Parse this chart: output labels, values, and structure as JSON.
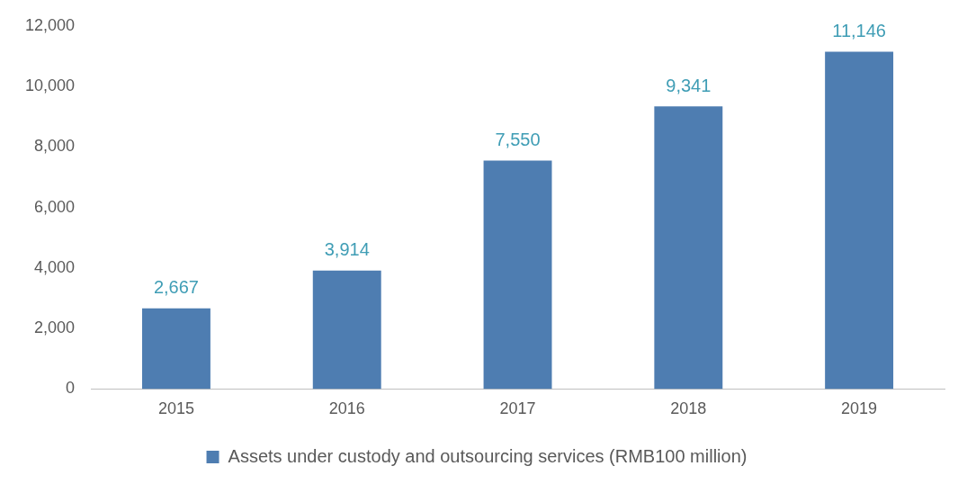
{
  "chart_data": {
    "type": "bar",
    "categories": [
      "2015",
      "2016",
      "2017",
      "2018",
      "2019"
    ],
    "series": [
      {
        "name": "Assets under custody and outsourcing services (RMB100 million)",
        "color": "#4e7db1",
        "values": [
          2667,
          3914,
          7550,
          9341,
          11146
        ]
      }
    ],
    "ylim": [
      0,
      12000
    ],
    "yticks": [
      {
        "value": 0,
        "label": "0"
      },
      {
        "value": 2000,
        "label": "2,000"
      },
      {
        "value": 4000,
        "label": "4,000"
      },
      {
        "value": 6000,
        "label": "6,000"
      },
      {
        "value": 8000,
        "label": "8,000"
      },
      {
        "value": 10000,
        "label": "10,000"
      },
      {
        "value": 12000,
        "label": "12,000"
      }
    ],
    "value_labels": [
      "2,667",
      "3,914",
      "7,550",
      "9,341",
      "11,146"
    ],
    "grid": false,
    "legend": "bottom"
  }
}
